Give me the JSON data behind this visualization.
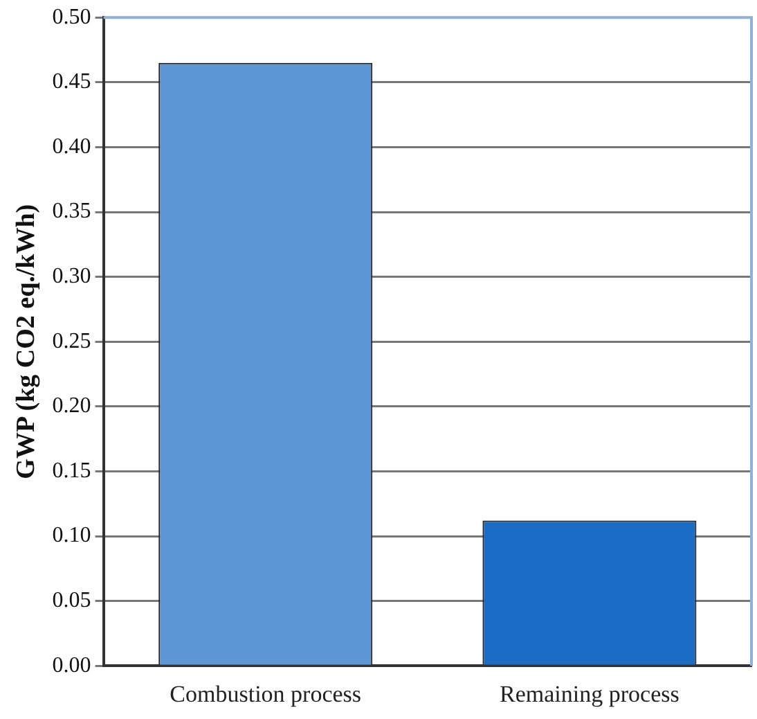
{
  "chart_data": {
    "type": "bar",
    "ylabel": "GWP (kg CO2 eq./kWh)",
    "categories": [
      "Combustion process",
      "Remaining process"
    ],
    "values": [
      0.465,
      0.112
    ],
    "colors": [
      "#5d97d6",
      "#1a6cc4"
    ],
    "ylim": [
      0,
      0.5
    ],
    "yticks": [
      {
        "value": 0,
        "label": "0.00"
      },
      {
        "value": 0.05,
        "label": "0.05"
      },
      {
        "value": 0.1,
        "label": "0.10"
      },
      {
        "value": 0.15,
        "label": "0.15"
      },
      {
        "value": 0.2,
        "label": "0.20"
      },
      {
        "value": 0.25,
        "label": "0.25"
      },
      {
        "value": 0.3,
        "label": "0.30"
      },
      {
        "value": 0.35,
        "label": "0.35"
      },
      {
        "value": 0.4,
        "label": "0.40"
      },
      {
        "value": 0.45,
        "label": "0.45"
      },
      {
        "value": 0.5,
        "label": "0.50"
      }
    ],
    "grid": "y",
    "legend": false
  }
}
